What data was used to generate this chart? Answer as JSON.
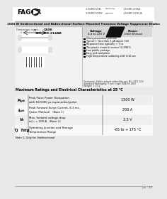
{
  "page_bg": "#e8e8e8",
  "content_bg": "#f2f2f2",
  "header_logo": "FAGOR",
  "part_numbers": [
    "1.5SMC5VB",
    "1.5SMC200A",
    "1.5SMC5VNC",
    "1.5SMC220CA"
  ],
  "title": "1500 W Unidirectional and Bidirectional Surface Mounted Transient Voltage Suppressor Diodes",
  "case_label": "CASE\nSMC/DO-214AB",
  "voltage_label": "Voltage\n4.0 to 220 V",
  "power_label": "Power\n1500 W(max)",
  "dim_label": "Dimensions in mm.",
  "features": [
    "Glass passivated junction",
    "Typical Iᵐ less than 1 μA above 10V",
    "Response time typically < 1 ns",
    "The plastic material carries UL-94V-0",
    "Low profile package",
    "Easy pick and place",
    "High temperature soldering 260°C/10 sec"
  ],
  "info_text": "Terminals: Solder plated solderable per MIL-STD-202\nStandard Packaging: 5 mm. tape (EIA-RS-481)\nWeight: 1.12 g.",
  "table_title": "Maximum Ratings and Electrical Characteristics at 25 °C",
  "rows": [
    {
      "sym": "Pₚₚₖ",
      "desc1": "Peak Pulse Power Dissipation",
      "desc2": "with 10/1000 μs exponential pulse",
      "val": "1500 W"
    },
    {
      "sym": "Iₚₚₖ",
      "desc1": "Peak Forward Surge Current, 8.3 ms.",
      "desc2": "(Jedec Method)   (Note 1)",
      "val": "200 A"
    },
    {
      "sym": "Vₔ",
      "desc1": "Max. forward voltage drop",
      "desc2": "at Iₔ = 100 A   (Note 1)",
      "val": "3.5 V"
    },
    {
      "sym": "Tj  Tstg",
      "desc1": "Operating Junction and Storage",
      "desc2": "Temperature Range",
      "val": "-65 to + 175 °C"
    }
  ],
  "footnote": "Note 1: Only for Unidirectional",
  "page_num": "Jun - 93"
}
